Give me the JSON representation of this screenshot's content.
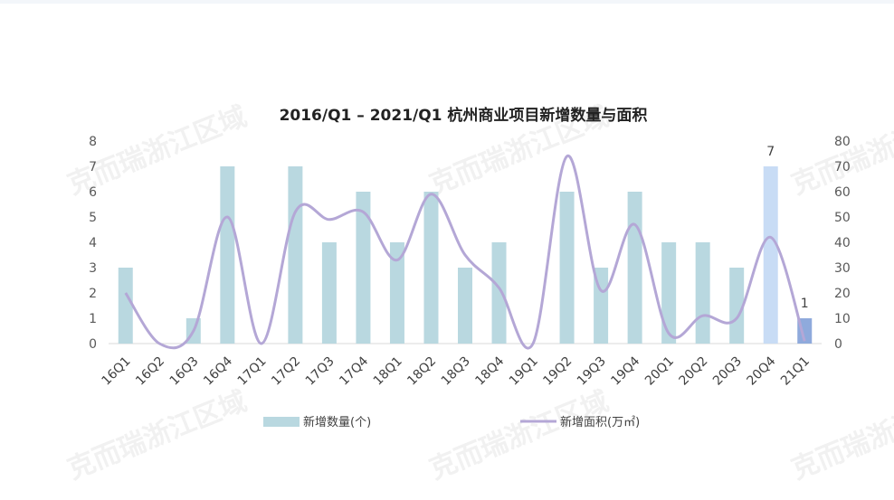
{
  "chart_data": {
    "type": "bar",
    "title": "2016/Q1 – 2021/Q1 杭州商业项目新增数量与面积",
    "categories": [
      "16Q1",
      "16Q2",
      "16Q3",
      "16Q4",
      "17Q1",
      "17Q2",
      "17Q3",
      "17Q4",
      "18Q1",
      "18Q2",
      "18Q3",
      "18Q4",
      "19Q1",
      "19Q2",
      "19Q3",
      "19Q4",
      "20Q1",
      "20Q2",
      "20Q3",
      "20Q4",
      "21Q1"
    ],
    "series": [
      {
        "name": "新增数量(个)",
        "type": "bar",
        "axis": "left",
        "values": [
          3,
          0,
          1,
          7,
          0,
          7,
          4,
          6,
          4,
          6,
          3,
          4,
          0,
          6,
          3,
          6,
          4,
          4,
          3,
          7,
          1
        ],
        "color": "#b9d8e0",
        "highlight": {
          "20Q4": "#c8dcf5",
          "21Q1": "#8faadc"
        }
      },
      {
        "name": "新增面积(万㎡)",
        "type": "line",
        "axis": "right",
        "values": [
          20,
          0,
          5,
          50,
          0,
          52,
          49,
          52,
          33,
          59,
          35,
          22,
          0,
          74,
          21,
          47,
          4,
          11,
          10,
          42,
          1
        ],
        "color": "#b4a7d6"
      }
    ],
    "y_left": {
      "min": 0,
      "max": 8,
      "ticks": [
        "0",
        "1",
        "2",
        "3",
        "4",
        "5",
        "6",
        "7",
        "8"
      ]
    },
    "y_right": {
      "min": 0,
      "max": 80,
      "ticks": [
        "0",
        "10",
        "20",
        "30",
        "40",
        "50",
        "60",
        "70",
        "80"
      ]
    },
    "data_labels": [
      {
        "category": "20Q4",
        "text": "7"
      },
      {
        "category": "21Q1",
        "text": "1"
      }
    ],
    "legend_position": "bottom",
    "grid": false
  },
  "watermark": "克而瑞浙江区域"
}
